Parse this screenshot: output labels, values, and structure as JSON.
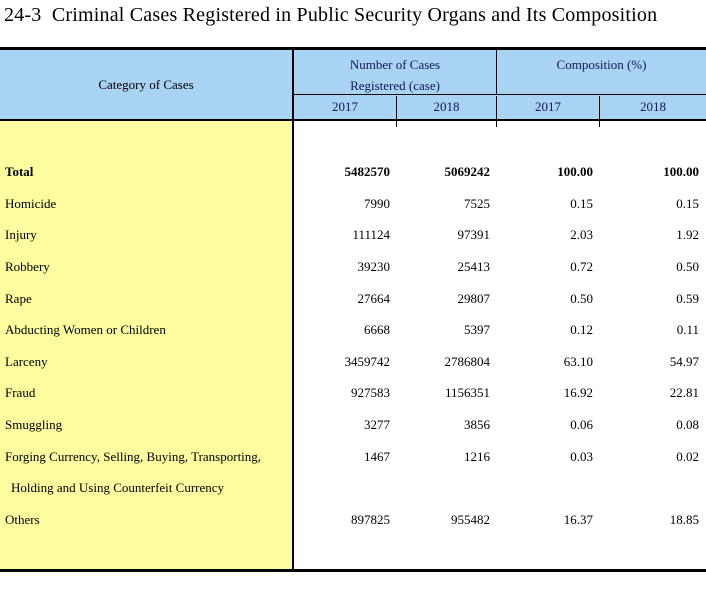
{
  "page": {
    "title": "24-3  Criminal Cases Registered in Public Security Organs and Its Composition"
  },
  "table": {
    "header": {
      "category": "Category of Cases",
      "group1_line1": "Number of Cases",
      "group1_line2": "Registered (case)",
      "group2": "Composition (%)",
      "years": [
        "2017",
        "2018",
        "2017",
        "2018"
      ]
    },
    "rows": [
      {
        "label": "Total",
        "bold": true,
        "n2017": "5482570",
        "n2018": "5069242",
        "c2017": "100.00",
        "c2018": "100.00"
      },
      {
        "label": "Homicide",
        "n2017": "7990",
        "n2018": "7525",
        "c2017": "0.15",
        "c2018": "0.15"
      },
      {
        "label": "Injury",
        "n2017": "111124",
        "n2018": "97391",
        "c2017": "2.03",
        "c2018": "1.92"
      },
      {
        "label": "Robbery",
        "n2017": "39230",
        "n2018": "25413",
        "c2017": "0.72",
        "c2018": "0.50"
      },
      {
        "label": "Rape",
        "n2017": "27664",
        "n2018": "29807",
        "c2017": "0.50",
        "c2018": "0.59"
      },
      {
        "label": "Abducting Women or Children",
        "n2017": "6668",
        "n2018": "5397",
        "c2017": "0.12",
        "c2018": "0.11"
      },
      {
        "label": "Larceny",
        "n2017": "3459742",
        "n2018": "2786804",
        "c2017": "63.10",
        "c2018": "54.97"
      },
      {
        "label": "Fraud",
        "n2017": "927583",
        "n2018": "1156351",
        "c2017": "16.92",
        "c2018": "22.81"
      },
      {
        "label": "Smuggling",
        "n2017": "3277",
        "n2018": "3856",
        "c2017": "0.06",
        "c2018": "0.08"
      },
      {
        "label": "Forging Currency, Selling, Buying, Transporting,",
        "label2": "Holding and Using Counterfeit Currency",
        "n2017": "1467",
        "n2018": "1216",
        "c2017": "0.03",
        "c2018": "0.02"
      },
      {
        "label": "Others",
        "n2017": "897825",
        "n2018": "955482",
        "c2017": "16.37",
        "c2018": "18.85"
      }
    ],
    "colors": {
      "header_bg": "#a8d3f2",
      "category_bg": "#fdfd9f",
      "header_text": "#15155e",
      "border": "#000000"
    }
  }
}
